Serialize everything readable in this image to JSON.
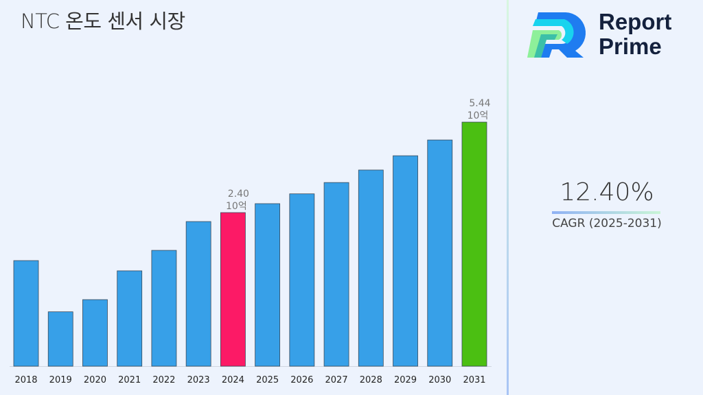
{
  "title": "NTC 온도 센서 시장",
  "brand": {
    "line1": "Report",
    "line2": "Prime"
  },
  "cagr": {
    "value": "12.40%",
    "label": "CAGR (2025-2031)"
  },
  "colors": {
    "default_bar": "#37a0e8",
    "highlight_2024": "#fc1a66",
    "highlight_2031": "#4bbf12",
    "background": "#edf3fd"
  },
  "chart_data": {
    "type": "bar",
    "title": "NTC 온도 센서 시장",
    "categories": [
      "2018",
      "2019",
      "2020",
      "2021",
      "2022",
      "2023",
      "2024",
      "2025",
      "2026",
      "2027",
      "2028",
      "2029",
      "2030",
      "2031"
    ],
    "values": [
      1.65,
      0.85,
      1.04,
      1.49,
      1.81,
      2.26,
      2.4,
      2.7,
      3.03,
      3.41,
      3.83,
      4.31,
      4.84,
      5.44
    ],
    "unit": "10억",
    "data_labels": [
      {
        "category": "2024",
        "value": "2.40",
        "unit": "10억"
      },
      {
        "category": "2031",
        "value": "5.44",
        "unit": "10억"
      }
    ],
    "grid": false,
    "legend": "none"
  }
}
